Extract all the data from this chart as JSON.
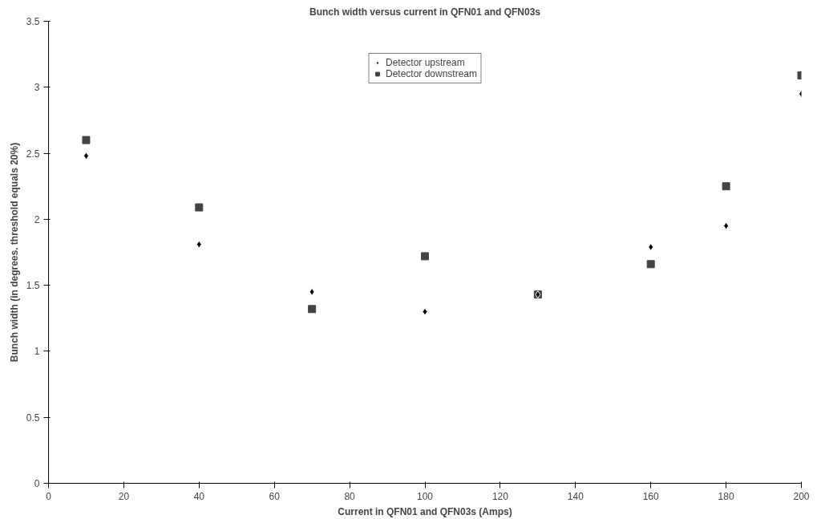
{
  "chart_data": {
    "type": "scatter",
    "title": "Bunch width versus current in QFN01 and QFN03s",
    "xlabel": "Current in QFN01 and QFN03s (Amps)",
    "ylabel": "Bunch width (in degrees. threshold equals 20%)",
    "x": [
      10,
      40,
      70,
      100,
      130,
      160,
      180,
      200
    ],
    "series": [
      {
        "name": "Detector upstream",
        "color": "#000000",
        "marker": "diamond",
        "values": [
          2.48,
          1.81,
          1.45,
          1.3,
          1.43,
          1.79,
          1.95,
          2.95
        ]
      },
      {
        "name": "Detector downstream",
        "color": "#444444",
        "marker": "square",
        "values": [
          2.6,
          2.09,
          1.32,
          1.72,
          1.43,
          1.66,
          2.25,
          3.09
        ]
      }
    ],
    "xlim": [
      0,
      200
    ],
    "ylim": [
      0,
      3.5
    ],
    "xticks": [
      0,
      20,
      40,
      60,
      80,
      100,
      120,
      140,
      160,
      180,
      200
    ],
    "yticks": [
      0,
      0.5,
      1,
      1.5,
      2,
      2.5,
      3,
      3.5
    ],
    "grid": false,
    "legend": "top"
  }
}
